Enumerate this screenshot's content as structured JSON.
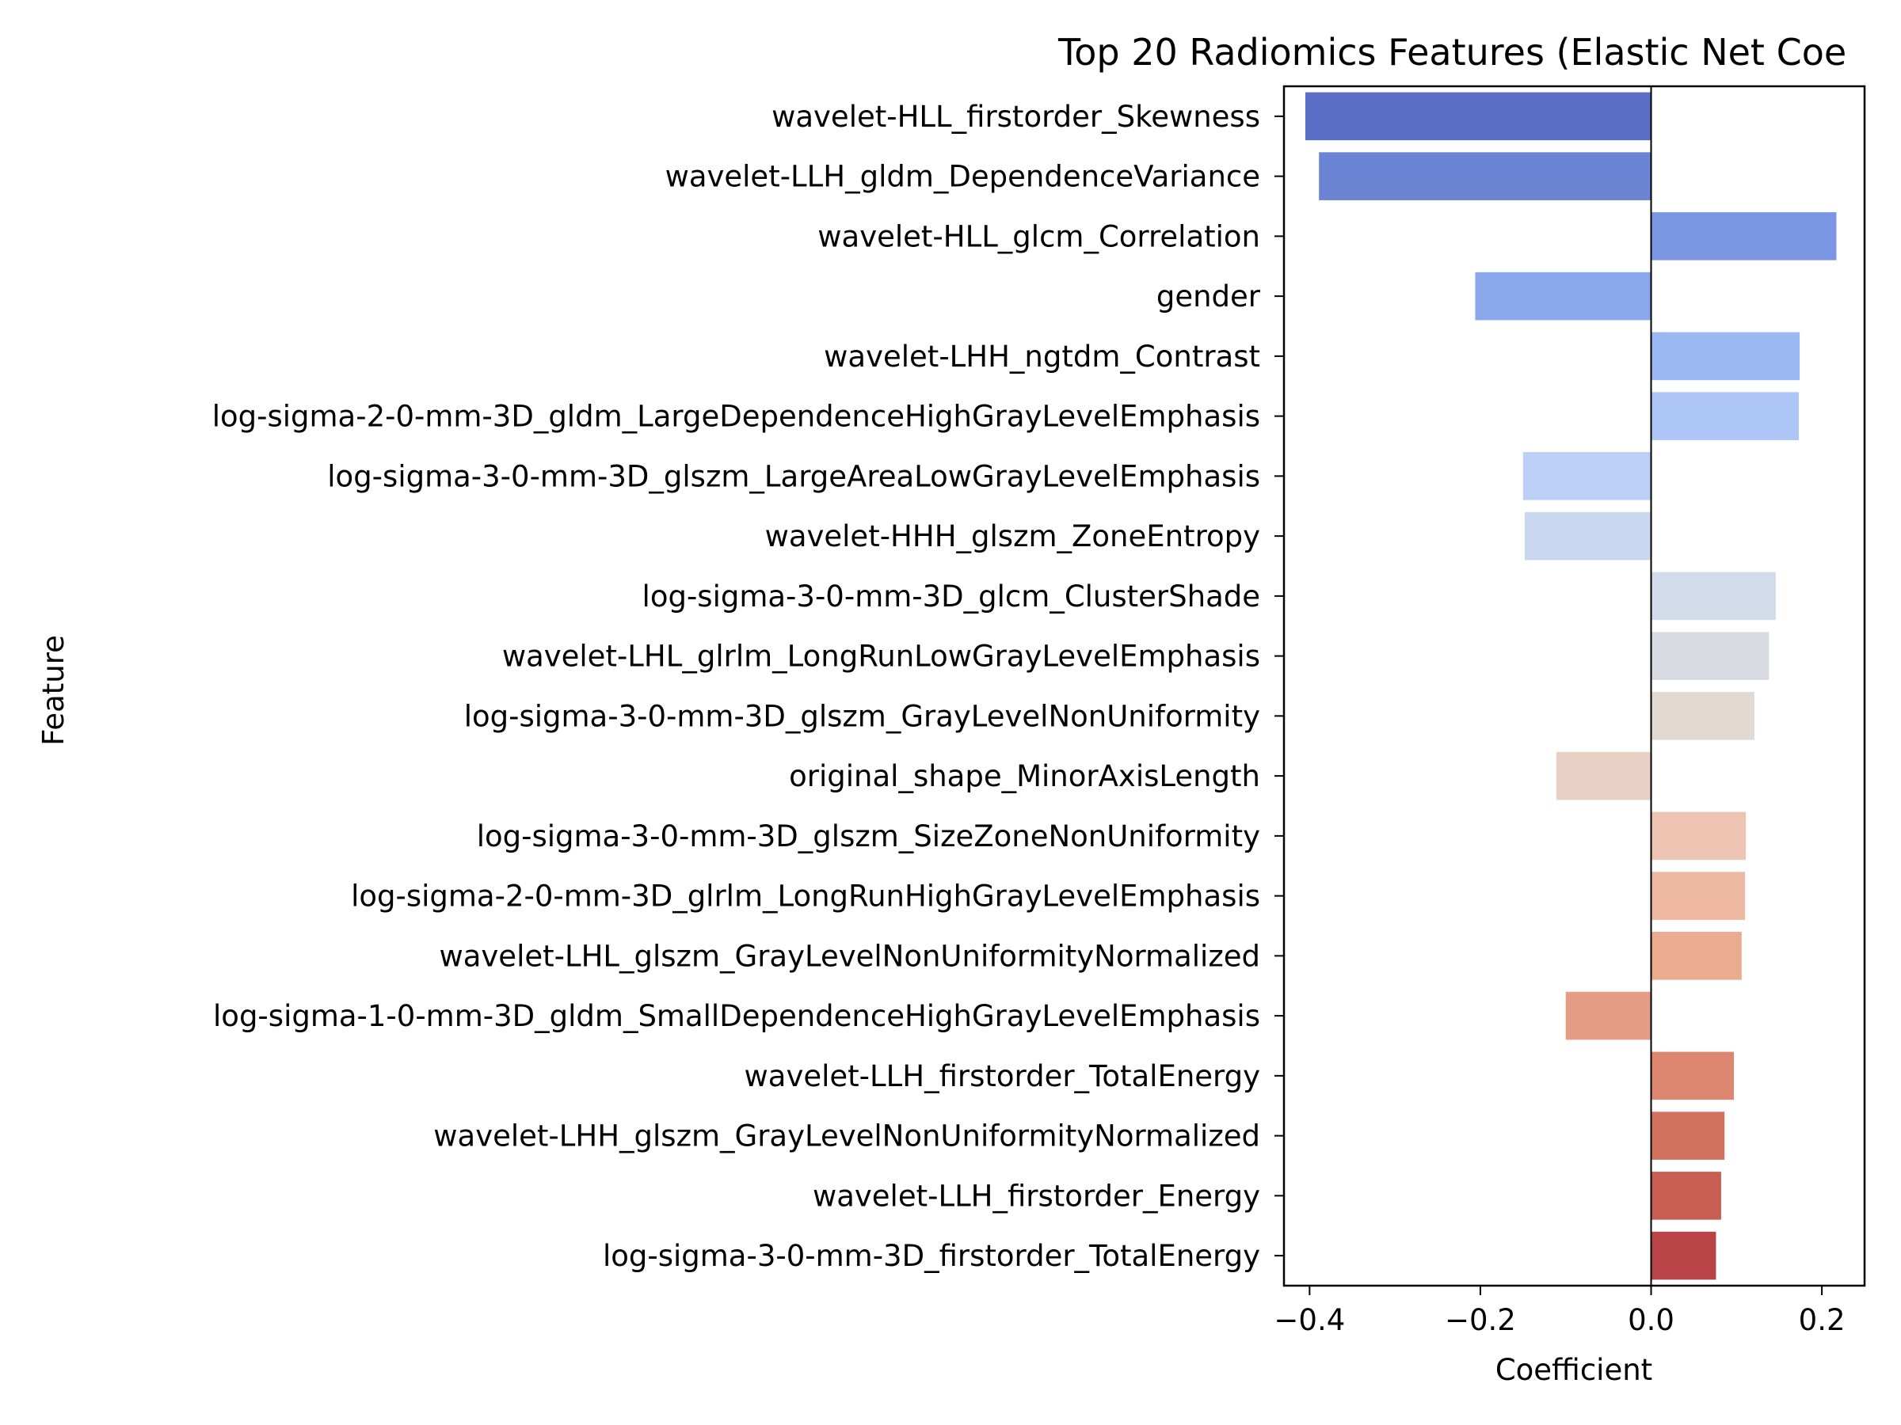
{
  "chart_data": {
    "type": "bar",
    "orientation": "horizontal",
    "title": "Top 20 Radiomics Features (Elastic Net Coe",
    "xlabel": "Coefficient",
    "ylabel": "Feature",
    "xlim": [
      -0.43,
      0.25
    ],
    "xticks": [
      -0.4,
      -0.2,
      0.0,
      0.2
    ],
    "xtick_labels": [
      "−0.4",
      "−0.2",
      "0.0",
      "0.2"
    ],
    "grid": false,
    "legend": "none",
    "categories": [
      "wavelet-HLL_firstorder_Skewness",
      "wavelet-LLH_gldm_DependenceVariance",
      "wavelet-HLL_glcm_Correlation",
      "gender",
      "wavelet-LHH_ngtdm_Contrast",
      "log-sigma-2-0-mm-3D_gldm_LargeDependenceHighGrayLevelEmphasis",
      "log-sigma-3-0-mm-3D_glszm_LargeAreaLowGrayLevelEmphasis",
      "wavelet-HHH_glszm_ZoneEntropy",
      "log-sigma-3-0-mm-3D_glcm_ClusterShade",
      "wavelet-LHL_glrlm_LongRunLowGrayLevelEmphasis",
      "log-sigma-3-0-mm-3D_glszm_GrayLevelNonUniformity",
      "original_shape_MinorAxisLength",
      "log-sigma-3-0-mm-3D_glszm_SizeZoneNonUniformity",
      "log-sigma-2-0-mm-3D_glrlm_LongRunHighGrayLevelEmphasis",
      "wavelet-LHL_glszm_GrayLevelNonUniformityNormalized",
      "log-sigma-1-0-mm-3D_gldm_SmallDependenceHighGrayLevelEmphasis",
      "wavelet-LLH_firstorder_TotalEnergy",
      "wavelet-LHH_glszm_GrayLevelNonUniformityNormalized",
      "wavelet-LLH_firstorder_Energy",
      "log-sigma-3-0-mm-3D_firstorder_TotalEnergy"
    ],
    "values": [
      -0.405,
      -0.389,
      0.217,
      -0.206,
      0.174,
      0.173,
      -0.15,
      -0.148,
      0.146,
      0.138,
      0.121,
      -0.111,
      0.111,
      0.11,
      0.106,
      -0.1,
      0.097,
      0.086,
      0.082,
      0.076
    ],
    "colors": [
      "#5b6ec6",
      "#6b84d4",
      "#7b96e2",
      "#8ba8ec",
      "#9cb9f3",
      "#adc6f7",
      "#bccff6",
      "#c9d7f1",
      "#d2dcea",
      "#d9dbe2",
      "#e2d9d3",
      "#e9d0c4",
      "#edc3b2",
      "#efb9a1",
      "#ebab8e",
      "#e59d85",
      "#dd8770",
      "#d2735f",
      "#c75e51",
      "#b94447"
    ]
  }
}
